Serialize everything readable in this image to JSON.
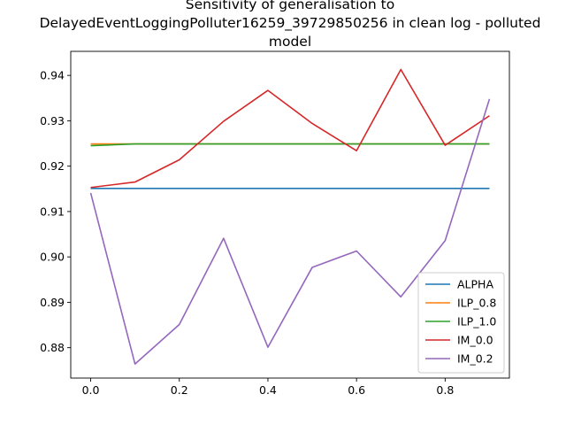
{
  "chart_data": {
    "type": "line",
    "title_lines": [
      "Sensitivity of generalisation to",
      "DelayedEventLoggingPolluter16259_39729850256 in clean log - polluted",
      "model"
    ],
    "xlabel": "",
    "ylabel": "",
    "x": [
      0.0,
      0.1,
      0.2,
      0.3,
      0.4,
      0.5,
      0.6,
      0.7,
      0.8,
      0.9
    ],
    "xlim": [
      -0.045,
      0.945
    ],
    "ylim": [
      0.8733,
      0.9453
    ],
    "xticks": [
      0.0,
      0.2,
      0.4,
      0.6,
      0.8
    ],
    "xtick_labels": [
      "0.0",
      "0.2",
      "0.4",
      "0.6",
      "0.8"
    ],
    "yticks": [
      0.88,
      0.89,
      0.9,
      0.91,
      0.92,
      0.93,
      0.94
    ],
    "ytick_labels": [
      "0.88",
      "0.89",
      "0.90",
      "0.91",
      "0.92",
      "0.93",
      "0.94"
    ],
    "legend_position": "lower right",
    "series": [
      {
        "name": "ALPHA",
        "color": "#1f77b4",
        "values": [
          0.9151,
          0.9151,
          0.9151,
          0.9151,
          0.9151,
          0.9151,
          0.9151,
          0.9151,
          0.9151,
          0.9151
        ]
      },
      {
        "name": "ILP_0.8",
        "color": "#ff7f0e",
        "values": [
          0.9249,
          0.9249,
          0.9249,
          0.9249,
          0.9249,
          0.9249,
          0.9249,
          0.9249,
          0.9249,
          0.9249
        ]
      },
      {
        "name": "ILP_1.0",
        "color": "#2ca02c",
        "values": [
          0.9245,
          0.9249,
          0.9249,
          0.9249,
          0.9249,
          0.9249,
          0.9249,
          0.9249,
          0.9249,
          0.9249
        ]
      },
      {
        "name": "IM_0.0",
        "color": "#d62728",
        "values": [
          0.9153,
          0.9165,
          0.9214,
          0.9299,
          0.9367,
          0.9294,
          0.9234,
          0.9413,
          0.9246,
          0.9311
        ]
      },
      {
        "name": "IM_0.2",
        "color": "#9467bd",
        "values": [
          0.9141,
          0.8764,
          0.8851,
          0.9041,
          0.8801,
          0.8977,
          0.9013,
          0.8912,
          0.9036,
          0.9348
        ]
      }
    ]
  }
}
